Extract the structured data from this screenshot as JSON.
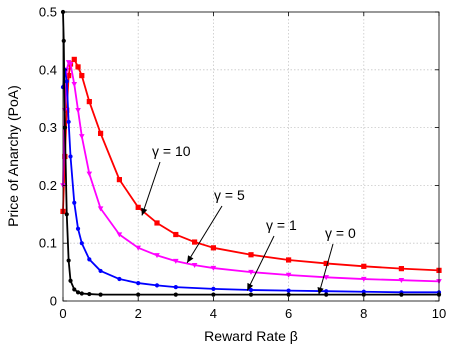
{
  "chart_data": {
    "type": "line",
    "xlabel": "Reward Rate β",
    "ylabel": "Price of Anarchy (PoA)",
    "xlim": [
      0,
      10
    ],
    "ylim": [
      0,
      0.5
    ],
    "x_ticks": [
      "0",
      "2",
      "4",
      "6",
      "8",
      "10"
    ],
    "y_ticks": [
      "0",
      "0.1",
      "0.2",
      "0.3",
      "0.4",
      "0.5"
    ],
    "grid": true,
    "annotations": [
      {
        "text": "γ = 10",
        "series": "gamma10",
        "points_to": [
          2.1,
          0.148
        ]
      },
      {
        "text": "γ = 5",
        "series": "gamma5",
        "points_to": [
          3.3,
          0.066
        ]
      },
      {
        "text": "γ = 1",
        "series": "gamma1",
        "points_to": [
          4.9,
          0.018
        ]
      },
      {
        "text": "γ = 0",
        "series": "gamma0",
        "points_to": [
          6.8,
          0.011
        ]
      }
    ],
    "series": [
      {
        "id": "gamma10",
        "color": "#ff0000",
        "marker": "square",
        "x": [
          0,
          0.05,
          0.1,
          0.15,
          0.2,
          0.3,
          0.4,
          0.5,
          0.7,
          1.0,
          1.5,
          2.0,
          2.5,
          3.0,
          3.5,
          4.0,
          5.0,
          6.0,
          7.0,
          8.0,
          9.0,
          10.0
        ],
        "values": [
          0.155,
          0.25,
          0.33,
          0.39,
          0.41,
          0.418,
          0.405,
          0.39,
          0.345,
          0.29,
          0.21,
          0.162,
          0.135,
          0.115,
          0.102,
          0.092,
          0.08,
          0.071,
          0.065,
          0.06,
          0.056,
          0.053
        ]
      },
      {
        "id": "gamma5",
        "color": "#ff00ff",
        "marker": "triangle-down",
        "x": [
          0,
          0.05,
          0.1,
          0.15,
          0.2,
          0.3,
          0.4,
          0.5,
          0.7,
          1.0,
          1.5,
          2.0,
          2.5,
          3.0,
          3.5,
          4.0,
          5.0,
          6.0,
          7.0,
          8.0,
          9.0,
          10.0
        ],
        "values": [
          0.2,
          0.33,
          0.4,
          0.413,
          0.41,
          0.375,
          0.33,
          0.285,
          0.22,
          0.16,
          0.115,
          0.092,
          0.079,
          0.069,
          0.062,
          0.057,
          0.05,
          0.045,
          0.041,
          0.038,
          0.036,
          0.034
        ]
      },
      {
        "id": "gamma1",
        "color": "#0000ff",
        "marker": "dot",
        "x": [
          0,
          0.05,
          0.1,
          0.15,
          0.2,
          0.3,
          0.4,
          0.5,
          0.7,
          1.0,
          1.5,
          2.0,
          2.5,
          3.0,
          4.0,
          5.0,
          6.0,
          7.0,
          8.0,
          9.0,
          10.0
        ],
        "values": [
          0.37,
          0.4,
          0.38,
          0.31,
          0.25,
          0.17,
          0.125,
          0.1,
          0.072,
          0.052,
          0.038,
          0.031,
          0.027,
          0.024,
          0.021,
          0.019,
          0.018,
          0.017,
          0.016,
          0.015,
          0.015
        ]
      },
      {
        "id": "gamma0",
        "color": "#000000",
        "marker": "dot",
        "x": [
          0,
          0.02,
          0.05,
          0.1,
          0.15,
          0.2,
          0.3,
          0.4,
          0.5,
          0.7,
          1.0,
          2.0,
          3.0,
          4.0,
          5.0,
          6.0,
          7.0,
          8.0,
          9.0,
          10.0
        ],
        "values": [
          0.5,
          0.45,
          0.3,
          0.15,
          0.07,
          0.035,
          0.02,
          0.015,
          0.013,
          0.012,
          0.011,
          0.011,
          0.011,
          0.011,
          0.011,
          0.011,
          0.011,
          0.011,
          0.011,
          0.011
        ]
      }
    ]
  }
}
